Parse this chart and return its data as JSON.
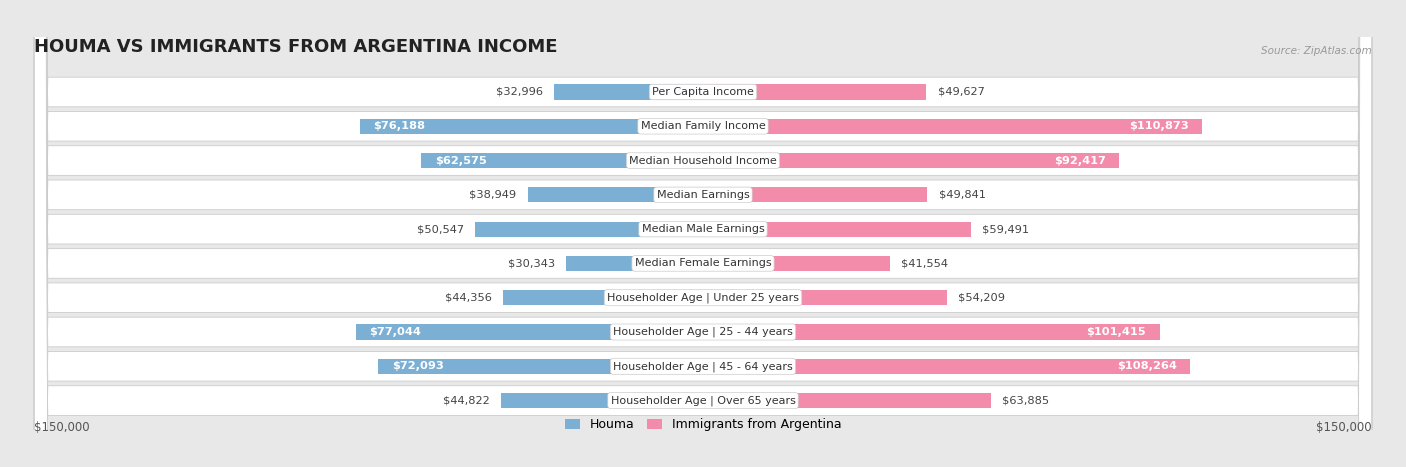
{
  "title": "HOUMA VS IMMIGRANTS FROM ARGENTINA INCOME",
  "source": "Source: ZipAtlas.com",
  "categories": [
    "Per Capita Income",
    "Median Family Income",
    "Median Household Income",
    "Median Earnings",
    "Median Male Earnings",
    "Median Female Earnings",
    "Householder Age | Under 25 years",
    "Householder Age | 25 - 44 years",
    "Householder Age | 45 - 64 years",
    "Householder Age | Over 65 years"
  ],
  "houma_values": [
    32996,
    76188,
    62575,
    38949,
    50547,
    30343,
    44356,
    77044,
    72093,
    44822
  ],
  "argentina_values": [
    49627,
    110873,
    92417,
    49841,
    59491,
    41554,
    54209,
    101415,
    108264,
    63885
  ],
  "houma_labels": [
    "$32,996",
    "$76,188",
    "$62,575",
    "$38,949",
    "$50,547",
    "$30,343",
    "$44,356",
    "$77,044",
    "$72,093",
    "$44,822"
  ],
  "argentina_labels": [
    "$49,627",
    "$110,873",
    "$92,417",
    "$49,841",
    "$59,491",
    "$41,554",
    "$54,209",
    "$101,415",
    "$108,264",
    "$63,885"
  ],
  "houma_color": "#7bafd4",
  "argentina_color": "#f38bab",
  "max_value": 150000,
  "xlabel_left": "$150,000",
  "xlabel_right": "$150,000",
  "legend_houma": "Houma",
  "legend_argentina": "Immigrants from Argentina",
  "background_color": "#e8e8e8",
  "row_background": "#ffffff",
  "title_fontsize": 13,
  "label_fontsize": 8.5,
  "houma_inside_threshold": 58000,
  "argentina_inside_threshold": 88000
}
